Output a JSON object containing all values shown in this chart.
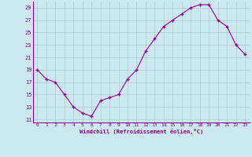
{
  "x": [
    0,
    1,
    2,
    3,
    4,
    5,
    6,
    7,
    8,
    9,
    10,
    11,
    12,
    13,
    14,
    15,
    16,
    17,
    18,
    19,
    20,
    21,
    22,
    23
  ],
  "y": [
    19,
    17.5,
    17,
    15,
    13,
    12,
    11.5,
    14,
    14.5,
    15,
    17.5,
    19,
    22,
    24,
    26,
    27,
    28,
    29,
    29.5,
    29.5,
    27,
    26,
    23,
    21.5
  ],
  "line_color": "#990099",
  "marker": "D",
  "marker_size": 2,
  "bg_color": "#cce8f0",
  "grid_color": "#aacccc",
  "xlabel": "Windchill (Refroidissement éolien,°C)",
  "xlabel_color": "#880088",
  "tick_color": "#880088",
  "yticks": [
    11,
    13,
    15,
    17,
    19,
    21,
    23,
    25,
    27,
    29
  ],
  "ylim": [
    10.5,
    30.0
  ],
  "xlim": [
    -0.5,
    23.5
  ],
  "xticks": [
    0,
    1,
    2,
    3,
    4,
    5,
    6,
    7,
    8,
    9,
    10,
    11,
    12,
    13,
    14,
    15,
    16,
    17,
    18,
    19,
    20,
    21,
    22,
    23
  ]
}
